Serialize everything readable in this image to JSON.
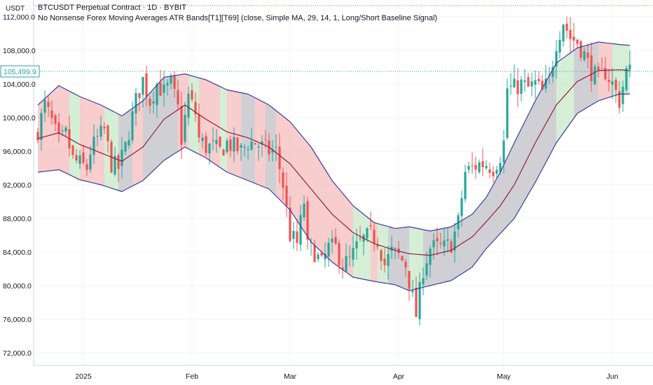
{
  "header": {
    "symbol_line": "BTCUSDT Perpetual Contract · 1D · BYBIT",
    "indicator_line": "No Nonsense Forex Moving Averages ATR Bands[T1][T69] (close, Simple MA, 29, 14, 1, Long/Short Baseline Signal)"
  },
  "price_axis": {
    "unit": "USDT",
    "ticks": [
      "112,000.0",
      "108,000.0",
      "104,000.0",
      "100,000.0",
      "96,000.0",
      "92,000.0",
      "88,000.0",
      "84,000.0",
      "80,000.0",
      "76,000.0",
      "72,000.0"
    ],
    "tick_values": [
      112000,
      108000,
      104000,
      100000,
      96000,
      92000,
      88000,
      84000,
      80000,
      76000,
      72000
    ],
    "last_price_label": "105,499.9",
    "last_price": 105499.9
  },
  "time_axis": {
    "ticks": [
      "2025",
      "Feb",
      "Mar",
      "Apr",
      "May",
      "Jun"
    ]
  },
  "colors": {
    "up": "#26a69a",
    "down": "#ef5350",
    "band_line": "#3f3aa0",
    "baseline": "#8e1f3e",
    "band_fill_neutral": "#c8c8cc",
    "band_fill_long": "#cdeccf",
    "band_fill_short": "#f6c4c6",
    "last_price_line": "#26a69a",
    "grid": "#f0f3fa"
  },
  "chart_data": {
    "type": "candlestick",
    "symbol": "BTCUSDT",
    "interval": "1D",
    "ylim": [
      70500,
      114000
    ],
    "xticks": [
      {
        "label": "2025",
        "index": 13
      },
      {
        "label": "Feb",
        "index": 44
      },
      {
        "label": "Mar",
        "index": 72
      },
      {
        "label": "Apr",
        "index": 103
      },
      {
        "label": "May",
        "index": 133
      },
      {
        "label": "Jun",
        "index": 164
      }
    ],
    "anchors": {
      "close": [
        [
          0,
          98500
        ],
        [
          2,
          101500
        ],
        [
          4,
          99500
        ],
        [
          6,
          97000
        ],
        [
          8,
          98000
        ],
        [
          10,
          95000
        ],
        [
          12,
          94500
        ],
        [
          14,
          94000
        ],
        [
          15,
          96000
        ],
        [
          17,
          97500
        ],
        [
          19,
          98500
        ],
        [
          21,
          94500
        ],
        [
          23,
          94000
        ],
        [
          25,
          96500
        ],
        [
          28,
          102000
        ],
        [
          30,
          104500
        ],
        [
          32,
          102000
        ],
        [
          34,
          104000
        ],
        [
          36,
          103000
        ],
        [
          38,
          104000
        ],
        [
          40,
          101000
        ],
        [
          41,
          97500
        ],
        [
          43,
          102500
        ],
        [
          45,
          100500
        ],
        [
          46,
          97500
        ],
        [
          48,
          96500
        ],
        [
          50,
          96500
        ],
        [
          52,
          96000
        ],
        [
          54,
          97000
        ],
        [
          56,
          96500
        ],
        [
          58,
          96000
        ],
        [
          60,
          97000
        ],
        [
          62,
          97000
        ],
        [
          64,
          96500
        ],
        [
          66,
          96000
        ],
        [
          68,
          96000
        ],
        [
          70,
          92000
        ],
        [
          72,
          86000
        ],
        [
          74,
          85000
        ],
        [
          76,
          90000
        ],
        [
          77,
          84500
        ],
        [
          79,
          84000
        ],
        [
          81,
          82500
        ],
        [
          83,
          84500
        ],
        [
          85,
          84500
        ],
        [
          87,
          82500
        ],
        [
          89,
          83000
        ],
        [
          91,
          84500
        ],
        [
          93,
          85500
        ],
        [
          95,
          86000
        ],
        [
          97,
          85500
        ],
        [
          99,
          82500
        ],
        [
          101,
          84000
        ],
        [
          103,
          83500
        ],
        [
          105,
          82500
        ],
        [
          107,
          78500
        ],
        [
          108,
          76500
        ],
        [
          110,
          82000
        ],
        [
          112,
          84500
        ],
        [
          114,
          84500
        ],
        [
          116,
          84500
        ],
        [
          118,
          85000
        ],
        [
          120,
          87500
        ],
        [
          122,
          93500
        ],
        [
          124,
          94000
        ],
        [
          126,
          94500
        ],
        [
          128,
          94500
        ],
        [
          130,
          94000
        ],
        [
          132,
          95500
        ],
        [
          133,
          97000
        ],
        [
          134,
          103500
        ],
        [
          136,
          103500
        ],
        [
          138,
          104000
        ],
        [
          140,
          103500
        ],
        [
          142,
          104000
        ],
        [
          144,
          103000
        ],
        [
          146,
          104500
        ],
        [
          148,
          109000
        ],
        [
          150,
          111500
        ],
        [
          152,
          109500
        ],
        [
          154,
          109000
        ],
        [
          156,
          107500
        ],
        [
          158,
          105500
        ],
        [
          160,
          104500
        ],
        [
          162,
          105500
        ],
        [
          164,
          104000
        ],
        [
          166,
          102000
        ],
        [
          168,
          105500
        ],
        [
          169,
          105500
        ]
      ],
      "baseline": [
        [
          0,
          97500
        ],
        [
          6,
          98200
        ],
        [
          12,
          96800
        ],
        [
          18,
          95800
        ],
        [
          24,
          94800
        ],
        [
          30,
          96500
        ],
        [
          36,
          99800
        ],
        [
          42,
          101500
        ],
        [
          48,
          99800
        ],
        [
          54,
          98300
        ],
        [
          60,
          97600
        ],
        [
          66,
          96500
        ],
        [
          72,
          94500
        ],
        [
          78,
          91500
        ],
        [
          84,
          88500
        ],
        [
          90,
          86300
        ],
        [
          96,
          85000
        ],
        [
          102,
          84200
        ],
        [
          106,
          83800
        ],
        [
          112,
          83600
        ],
        [
          118,
          84200
        ],
        [
          124,
          85800
        ],
        [
          128,
          87600
        ],
        [
          132,
          89500
        ],
        [
          136,
          92000
        ],
        [
          142,
          97000
        ],
        [
          148,
          101500
        ],
        [
          154,
          104300
        ],
        [
          160,
          105600
        ],
        [
          166,
          105700
        ],
        [
          169,
          105600
        ]
      ],
      "upper": [
        [
          0,
          101500
        ],
        [
          6,
          103800
        ],
        [
          12,
          102500
        ],
        [
          18,
          101500
        ],
        [
          24,
          100200
        ],
        [
          30,
          102000
        ],
        [
          36,
          104800
        ],
        [
          42,
          105200
        ],
        [
          48,
          104500
        ],
        [
          54,
          103300
        ],
        [
          60,
          102800
        ],
        [
          66,
          101500
        ],
        [
          72,
          99500
        ],
        [
          78,
          96500
        ],
        [
          84,
          92500
        ],
        [
          90,
          89500
        ],
        [
          96,
          87500
        ],
        [
          102,
          86800
        ],
        [
          106,
          87000
        ],
        [
          112,
          86500
        ],
        [
          118,
          87000
        ],
        [
          124,
          88500
        ],
        [
          128,
          90500
        ],
        [
          132,
          93500
        ],
        [
          136,
          97000
        ],
        [
          142,
          102000
        ],
        [
          148,
          106500
        ],
        [
          154,
          108300
        ],
        [
          160,
          109000
        ],
        [
          166,
          108700
        ],
        [
          169,
          108600
        ]
      ],
      "lower": [
        [
          0,
          93500
        ],
        [
          6,
          93800
        ],
        [
          12,
          92600
        ],
        [
          18,
          92000
        ],
        [
          24,
          91200
        ],
        [
          30,
          92500
        ],
        [
          36,
          94900
        ],
        [
          42,
          96500
        ],
        [
          48,
          95200
        ],
        [
          54,
          93500
        ],
        [
          60,
          92500
        ],
        [
          66,
          91500
        ],
        [
          72,
          89000
        ],
        [
          78,
          85200
        ],
        [
          84,
          82800
        ],
        [
          90,
          81000
        ],
        [
          96,
          80500
        ],
        [
          102,
          80100
        ],
        [
          106,
          79400
        ],
        [
          112,
          80000
        ],
        [
          118,
          80600
        ],
        [
          124,
          82200
        ],
        [
          128,
          84400
        ],
        [
          132,
          86200
        ],
        [
          136,
          88000
        ],
        [
          142,
          92300
        ],
        [
          148,
          97000
        ],
        [
          154,
          100500
        ],
        [
          160,
          102000
        ],
        [
          166,
          102800
        ],
        [
          169,
          102800
        ]
      ]
    },
    "signal_segments": [
      {
        "start": 0,
        "end": 9,
        "signal": "short"
      },
      {
        "start": 9,
        "end": 12,
        "signal": "long"
      },
      {
        "start": 12,
        "end": 19,
        "signal": "short"
      },
      {
        "start": 19,
        "end": 23,
        "signal": "long"
      },
      {
        "start": 23,
        "end": 27,
        "signal": "neutral"
      },
      {
        "start": 27,
        "end": 30,
        "signal": "short"
      },
      {
        "start": 30,
        "end": 40,
        "signal": "neutral"
      },
      {
        "start": 40,
        "end": 43,
        "signal": "short"
      },
      {
        "start": 43,
        "end": 46,
        "signal": "long"
      },
      {
        "start": 46,
        "end": 52,
        "signal": "short"
      },
      {
        "start": 52,
        "end": 54,
        "signal": "long"
      },
      {
        "start": 54,
        "end": 58,
        "signal": "short"
      },
      {
        "start": 58,
        "end": 62,
        "signal": "neutral"
      },
      {
        "start": 62,
        "end": 65,
        "signal": "short"
      },
      {
        "start": 65,
        "end": 68,
        "signal": "neutral"
      },
      {
        "start": 68,
        "end": 90,
        "signal": "short"
      },
      {
        "start": 90,
        "end": 95,
        "signal": "long"
      },
      {
        "start": 95,
        "end": 97,
        "signal": "short"
      },
      {
        "start": 97,
        "end": 100,
        "signal": "long"
      },
      {
        "start": 100,
        "end": 106,
        "signal": "neutral"
      },
      {
        "start": 106,
        "end": 110,
        "signal": "long"
      },
      {
        "start": 110,
        "end": 124,
        "signal": "neutral"
      },
      {
        "start": 124,
        "end": 148,
        "signal": "neutral"
      },
      {
        "start": 148,
        "end": 153,
        "signal": "long"
      },
      {
        "start": 153,
        "end": 160,
        "signal": "neutral"
      },
      {
        "start": 160,
        "end": 164,
        "signal": "short"
      },
      {
        "start": 164,
        "end": 170,
        "signal": "long"
      }
    ]
  }
}
